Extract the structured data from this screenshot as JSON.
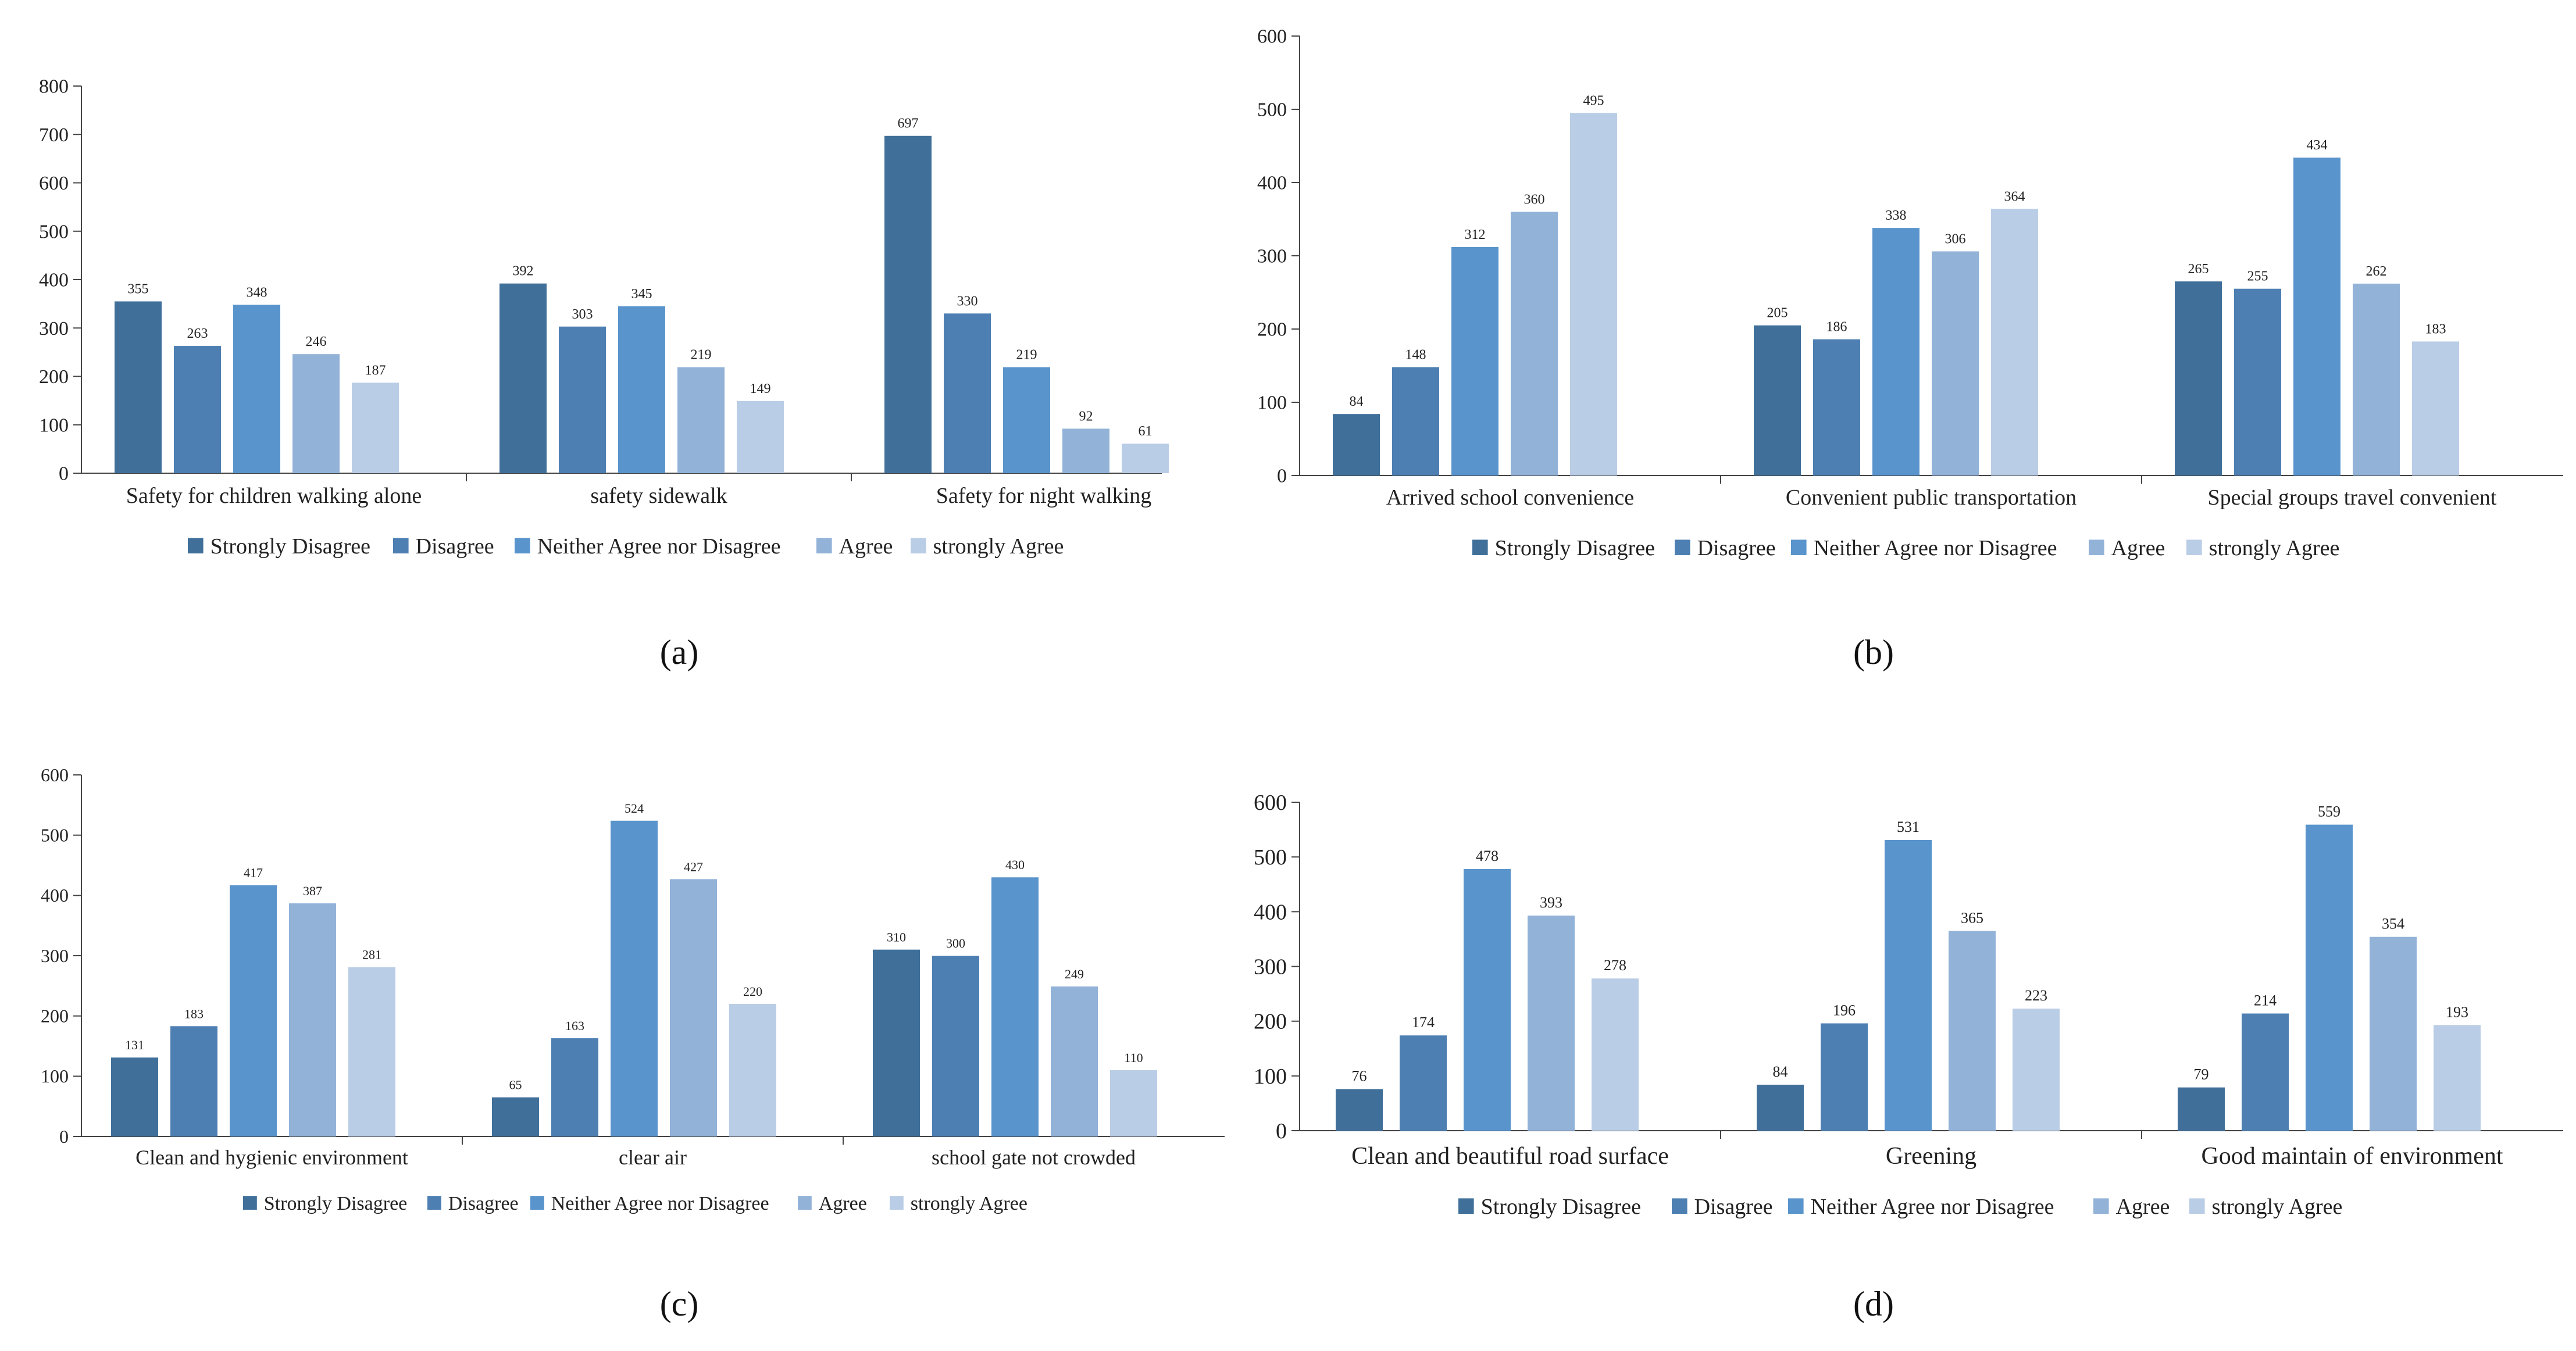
{
  "figure": {
    "panel_labels": [
      "(a)",
      "(b)",
      "(c)",
      "(d)"
    ]
  },
  "legend_labels": [
    "Strongly Disagree",
    "Disagree",
    "Neither Agree nor Disagree",
    "Agree",
    "strongly Agree"
  ],
  "colors": [
    "#40709a",
    "#4d7fb2",
    "#5994cc",
    "#92b2d8",
    "#bacde6"
  ],
  "chart_data": [
    {
      "type": "bar",
      "panel": "(a)",
      "categories": [
        "Safety for children walking alone",
        "safety sidewalk",
        "Safety for night walking"
      ],
      "series": [
        {
          "name": "Strongly Disagree",
          "values": [
            355,
            392,
            697
          ]
        },
        {
          "name": "Disagree",
          "values": [
            263,
            303,
            330
          ]
        },
        {
          "name": "Neither Agree nor Disagree",
          "values": [
            348,
            345,
            219
          ]
        },
        {
          "name": "Agree",
          "values": [
            246,
            219,
            92
          ]
        },
        {
          "name": "strongly Agree",
          "values": [
            187,
            149,
            61
          ]
        }
      ],
      "ylim": [
        0,
        800
      ],
      "yticks": [
        0,
        100,
        200,
        300,
        400,
        500,
        600,
        700,
        800
      ],
      "legend": "bottom"
    },
    {
      "type": "bar",
      "panel": "(b)",
      "categories": [
        "Arrived school convenience",
        "Convenient public transportation",
        "Special groups travel convenient"
      ],
      "series": [
        {
          "name": "Strongly Disagree",
          "values": [
            84,
            205,
            265
          ]
        },
        {
          "name": "Disagree",
          "values": [
            148,
            186,
            255
          ]
        },
        {
          "name": "Neither Agree nor Disagree",
          "values": [
            312,
            338,
            434
          ]
        },
        {
          "name": "Agree",
          "values": [
            360,
            306,
            262
          ]
        },
        {
          "name": "strongly Agree",
          "values": [
            495,
            364,
            183
          ]
        }
      ],
      "ylim": [
        0,
        600
      ],
      "yticks": [
        0,
        100,
        200,
        300,
        400,
        500,
        600
      ],
      "legend": "bottom"
    },
    {
      "type": "bar",
      "panel": "(c)",
      "categories": [
        "Clean and hygienic environment",
        "clear air",
        "school gate not crowded"
      ],
      "series": [
        {
          "name": "Strongly Disagree",
          "values": [
            131,
            65,
            310
          ]
        },
        {
          "name": "Disagree",
          "values": [
            183,
            163,
            300
          ]
        },
        {
          "name": "Neither Agree nor Disagree",
          "values": [
            417,
            524,
            430
          ]
        },
        {
          "name": "Agree",
          "values": [
            387,
            427,
            249
          ]
        },
        {
          "name": "strongly Agree",
          "values": [
            281,
            220,
            110
          ]
        }
      ],
      "ylim": [
        0,
        600
      ],
      "yticks": [
        0,
        100,
        200,
        300,
        400,
        500,
        600
      ],
      "legend": "bottom"
    },
    {
      "type": "bar",
      "panel": "(d)",
      "categories": [
        "Clean and beautiful road surface",
        "Greening",
        "Good maintain of environment"
      ],
      "series": [
        {
          "name": "Strongly Disagree",
          "values": [
            76,
            84,
            79
          ]
        },
        {
          "name": "Disagree",
          "values": [
            174,
            196,
            214
          ]
        },
        {
          "name": "Neither Agree nor Disagree",
          "values": [
            478,
            531,
            559
          ]
        },
        {
          "name": "Agree",
          "values": [
            393,
            365,
            354
          ]
        },
        {
          "name": "strongly Agree",
          "values": [
            278,
            223,
            193
          ]
        }
      ],
      "ylim": [
        0,
        600
      ],
      "yticks": [
        0,
        100,
        200,
        300,
        400,
        500,
        600
      ],
      "legend": "bottom"
    }
  ]
}
